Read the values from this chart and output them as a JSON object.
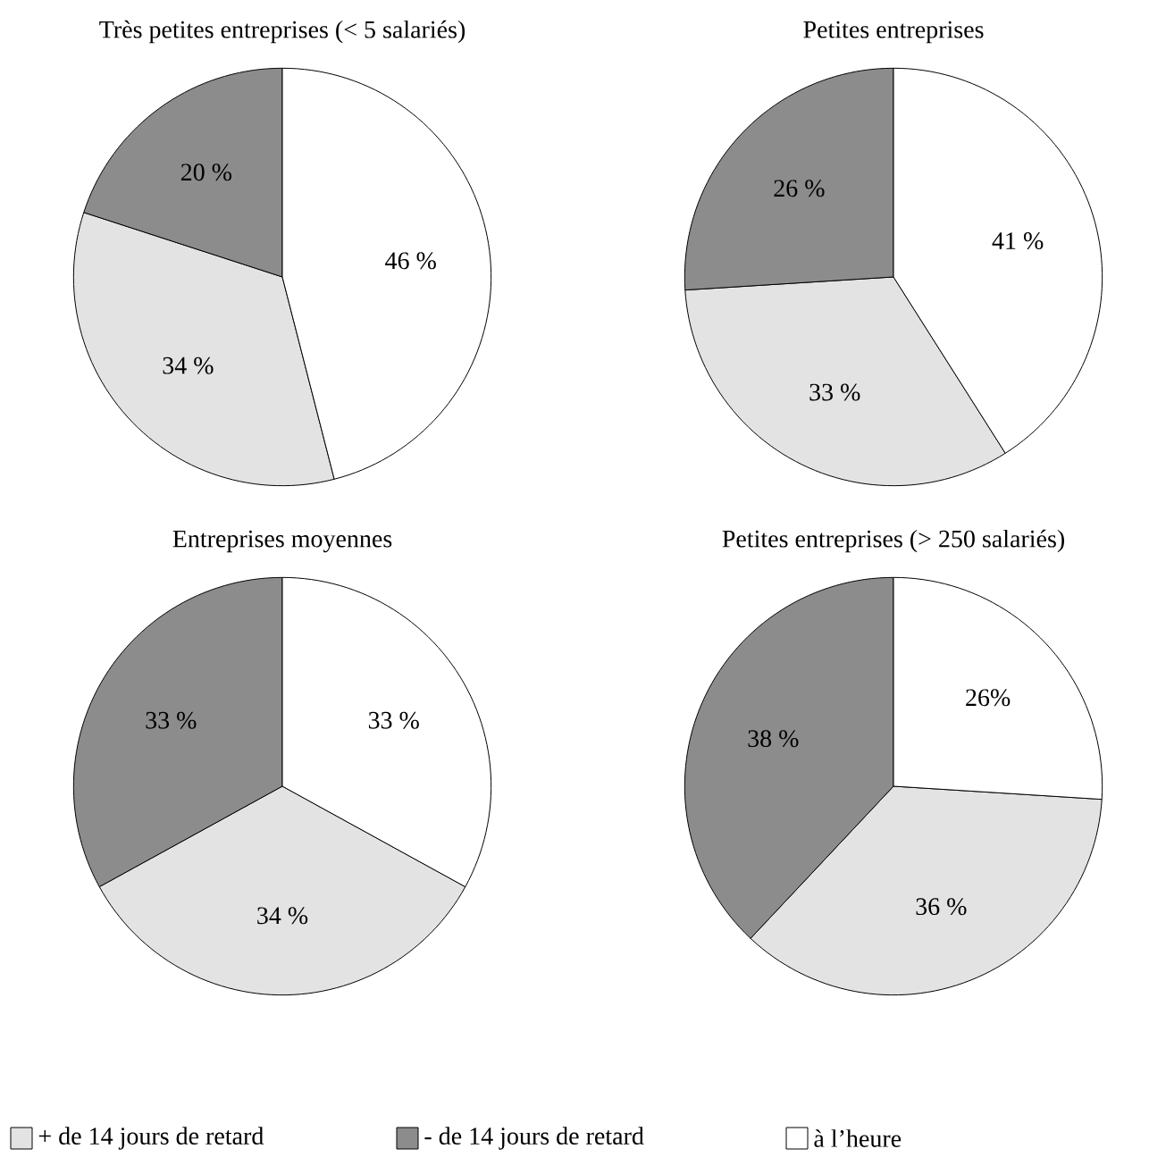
{
  "chart_data": [
    {
      "type": "pie",
      "title": "Très petites entreprises (< 5 salariés)",
      "categories": [
        null,
        null,
        null
      ],
      "values": [
        34,
        20,
        46
      ],
      "value_labels": [
        "34 %",
        "20 %",
        "46 %"
      ],
      "colors": [
        "#e3e3e3",
        "#8c8c8c",
        "#ffffff"
      ]
    },
    {
      "type": "pie",
      "title": "Petites entreprises",
      "categories": [
        null,
        null,
        null
      ],
      "values": [
        33,
        26,
        41
      ],
      "value_labels": [
        "33 %",
        "26 %",
        "41 %"
      ],
      "colors": [
        "#e3e3e3",
        "#8c8c8c",
        "#ffffff"
      ]
    },
    {
      "type": "pie",
      "title": "Entreprises moyennes",
      "categories": [
        "+ de 14 jours de retard",
        "- de 14 jours de retard",
        "à l’heure"
      ],
      "values": [
        34,
        33,
        33
      ],
      "value_labels": [
        "34 %",
        "33 %",
        "33 %"
      ],
      "colors": [
        "#e3e3e3",
        "#8c8c8c",
        "#ffffff"
      ],
      "legend": "bottom"
    },
    {
      "type": "pie",
      "title": "Petites entreprises (> 250 salariés)",
      "categories": [
        null,
        null,
        null
      ],
      "values": [
        36,
        38,
        26
      ],
      "value_labels": [
        "36 %",
        "38 %",
        "26%"
      ],
      "colors": [
        "#e3e3e3",
        "#8c8c8c",
        "#ffffff"
      ]
    }
  ]
}
